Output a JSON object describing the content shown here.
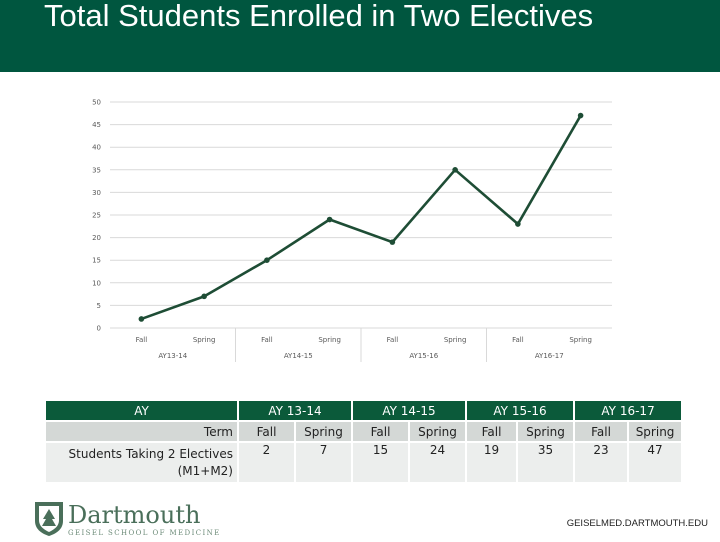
{
  "slide": {
    "title": "Total Students Enrolled in Two Electives",
    "footer_url": "GEISELMED.DARTMOUTH.EDU"
  },
  "logo": {
    "wordmark": "Dartmouth",
    "subtitle": "GEISEL SCHOOL OF MEDICINE"
  },
  "colors": {
    "brand_green": "#00563f",
    "line": "#1e4d35",
    "grid": "#d9d9d9"
  },
  "chart_data": {
    "type": "line",
    "categories": [
      "Fall",
      "Spring",
      "Fall",
      "Spring",
      "Fall",
      "Spring",
      "Fall",
      "Spring"
    ],
    "groups": [
      "AY13-14",
      "AY14-15",
      "AY15-16",
      "AY16-17"
    ],
    "series": [
      {
        "values": [
          2,
          7,
          15,
          24,
          19,
          35,
          23,
          47
        ]
      }
    ],
    "ylim": [
      0,
      50
    ],
    "yticks": [
      0,
      5,
      10,
      15,
      20,
      25,
      30,
      35,
      40,
      45,
      50
    ],
    "grid": true,
    "title": "",
    "xlabel": "",
    "ylabel": ""
  },
  "table": {
    "header_label": "AY",
    "years": [
      "AY 13-14",
      "AY 14-15",
      "AY 15-16",
      "AY 16-17"
    ],
    "term_label": "Term",
    "terms": [
      "Fall",
      "Spring",
      "Fall",
      "Spring",
      "Fall",
      "Spring",
      "Fall",
      "Spring"
    ],
    "row_label": "Students Taking 2 Electives (M1+M2)",
    "values": [
      "2",
      "7",
      "15",
      "24",
      "19",
      "35",
      "23",
      "47"
    ]
  }
}
